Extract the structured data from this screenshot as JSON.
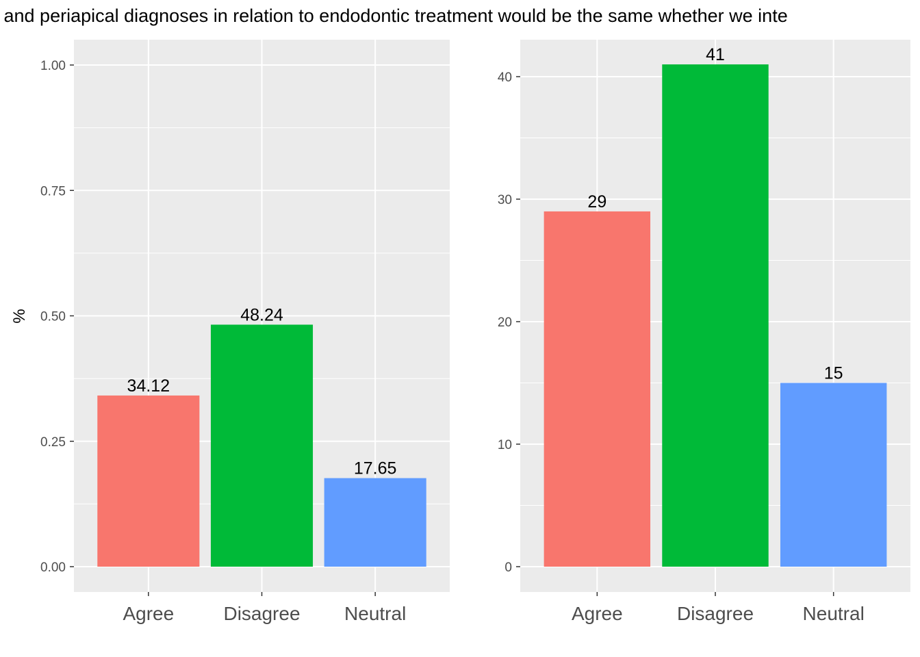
{
  "title": "l and periapical diagnoses in relation to endodontic treatment would be the same whether we inte",
  "chart_data": [
    {
      "type": "bar",
      "categories": [
        "Agree",
        "Disagree",
        "Neutral"
      ],
      "values": [
        0.3412,
        0.4824,
        0.1765
      ],
      "data_labels": [
        "34.12",
        "48.24",
        "17.65"
      ],
      "colors": [
        "#F8766D",
        "#00BA38",
        "#619CFF"
      ],
      "ylabel": "%",
      "ylim": [
        0,
        1.05
      ],
      "yticks": [
        0,
        0.25,
        0.5,
        0.75,
        1.0
      ],
      "ytick_labels": [
        "0.00",
        "0.25",
        "0.50",
        "0.75",
        "1.00"
      ],
      "grid": true,
      "legend": "none"
    },
    {
      "type": "bar",
      "categories": [
        "Agree",
        "Disagree",
        "Neutral"
      ],
      "values": [
        29,
        41,
        15
      ],
      "data_labels": [
        "29",
        "41",
        "15"
      ],
      "colors": [
        "#F8766D",
        "#00BA38",
        "#619CFF"
      ],
      "ylabel": "",
      "ylim": [
        0,
        43
      ],
      "yticks": [
        0,
        10,
        20,
        30,
        40
      ],
      "ytick_labels": [
        "0",
        "10",
        "20",
        "30",
        "40"
      ],
      "grid": true,
      "legend": "none"
    }
  ]
}
